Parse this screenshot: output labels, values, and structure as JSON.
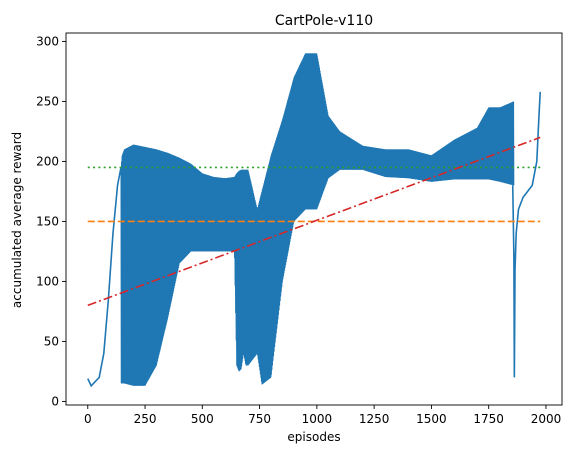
{
  "chart_data": {
    "type": "line",
    "title": "CartPole-v110",
    "xlabel": "episodes",
    "ylabel": "accumulated average reward",
    "xlim": [
      -95,
      2070
    ],
    "ylim": [
      -3,
      307
    ],
    "xticks": [
      0,
      250,
      500,
      750,
      1000,
      1250,
      1500,
      1750,
      2000
    ],
    "yticks": [
      0,
      50,
      100,
      150,
      200,
      250,
      300
    ],
    "grid": false,
    "colors": {
      "reward": "#1f77b4",
      "threshold_150": "#ff7f0e",
      "threshold_195": "#2ca02c",
      "trend": "#d62728"
    },
    "series": [
      {
        "name": "",
        "style": "solid",
        "color": "#1f77b4",
        "x": [
          0,
          15,
          30,
          50,
          70,
          90,
          110,
          130,
          145
        ],
        "y": [
          19,
          13,
          16,
          20,
          40,
          85,
          140,
          180,
          195
        ]
      },
      {
        "name": "",
        "style": "oscillating_band",
        "color": "#1f77b4",
        "x": [
          145,
          150,
          160,
          180,
          200,
          250,
          300,
          350,
          400,
          450,
          500,
          550,
          600,
          640,
          650,
          660,
          670,
          680,
          690,
          700,
          740,
          760,
          800,
          850,
          900,
          950,
          1000,
          1050,
          1100,
          1200,
          1300,
          1400,
          1500,
          1600,
          1700,
          1750,
          1800,
          1860
        ],
        "upper": [
          195,
          205,
          210,
          212,
          214,
          212,
          210,
          207,
          203,
          198,
          190,
          187,
          186,
          187,
          190,
          192,
          193,
          193,
          193,
          193,
          160,
          175,
          205,
          235,
          270,
          290,
          290,
          238,
          225,
          213,
          210,
          210,
          205,
          218,
          228,
          245,
          245,
          250
        ],
        "lower": [
          15,
          15,
          15,
          14,
          13,
          13,
          30,
          70,
          115,
          125,
          125,
          125,
          125,
          125,
          30,
          25,
          27,
          40,
          30,
          30,
          40,
          14,
          20,
          100,
          150,
          160,
          160,
          186,
          193,
          193,
          187,
          186,
          183,
          185,
          185,
          185,
          183,
          180
        ]
      },
      {
        "name": "",
        "style": "solid",
        "color": "#1f77b4",
        "x": [
          1855,
          1860,
          1862,
          1865,
          1870,
          1880,
          1900,
          1920,
          1940,
          1960,
          1970,
          1975
        ],
        "y": [
          180,
          120,
          20,
          110,
          140,
          160,
          170,
          175,
          180,
          200,
          240,
          258
        ]
      },
      {
        "name": "",
        "style": "dashed",
        "color": "#ff7f0e",
        "x": [
          0,
          1975
        ],
        "y": [
          150,
          150
        ]
      },
      {
        "name": "",
        "style": "dotted",
        "color": "#2ca02c",
        "x": [
          0,
          1975
        ],
        "y": [
          195,
          195
        ]
      },
      {
        "name": "",
        "style": "dashdot",
        "color": "#d62728",
        "x": [
          0,
          1975
        ],
        "y": [
          80,
          220
        ]
      }
    ]
  }
}
